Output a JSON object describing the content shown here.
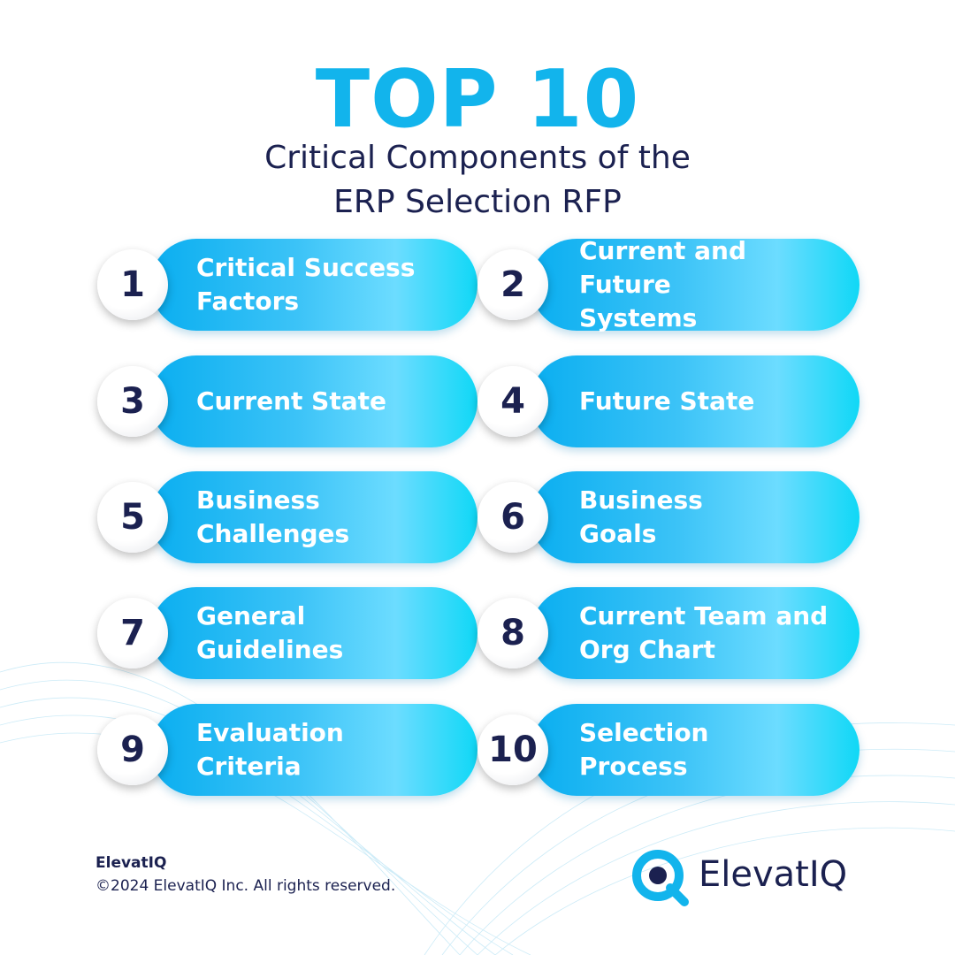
{
  "header": {
    "title": "TOP 10",
    "subtitle": [
      "Critical Components of the",
      "ERP Selection RFP"
    ]
  },
  "items": [
    {
      "number": 1,
      "label": [
        "Critical Success",
        "Factors"
      ]
    },
    {
      "number": 2,
      "label": [
        "Current and Future",
        "Systems"
      ]
    },
    {
      "number": 3,
      "label": [
        "Current State"
      ]
    },
    {
      "number": 4,
      "label": [
        "Future State"
      ]
    },
    {
      "number": 5,
      "label": [
        "Business",
        "Challenges"
      ]
    },
    {
      "number": 6,
      "label": [
        "Business",
        "Goals"
      ]
    },
    {
      "number": 7,
      "label": [
        "General",
        "Guidelines"
      ]
    },
    {
      "number": 8,
      "label": [
        "Current Team and",
        "Org Chart"
      ]
    },
    {
      "number": 9,
      "label": [
        "Evaluation",
        "Criteria"
      ]
    },
    {
      "number": 10,
      "label": [
        "Selection",
        "Process"
      ]
    }
  ],
  "footer": {
    "brand": "ElevatIQ",
    "copyright": "©2024 ElevatIQ Inc. All rights reserved.",
    "logo_text": "ElevatIQ"
  }
}
